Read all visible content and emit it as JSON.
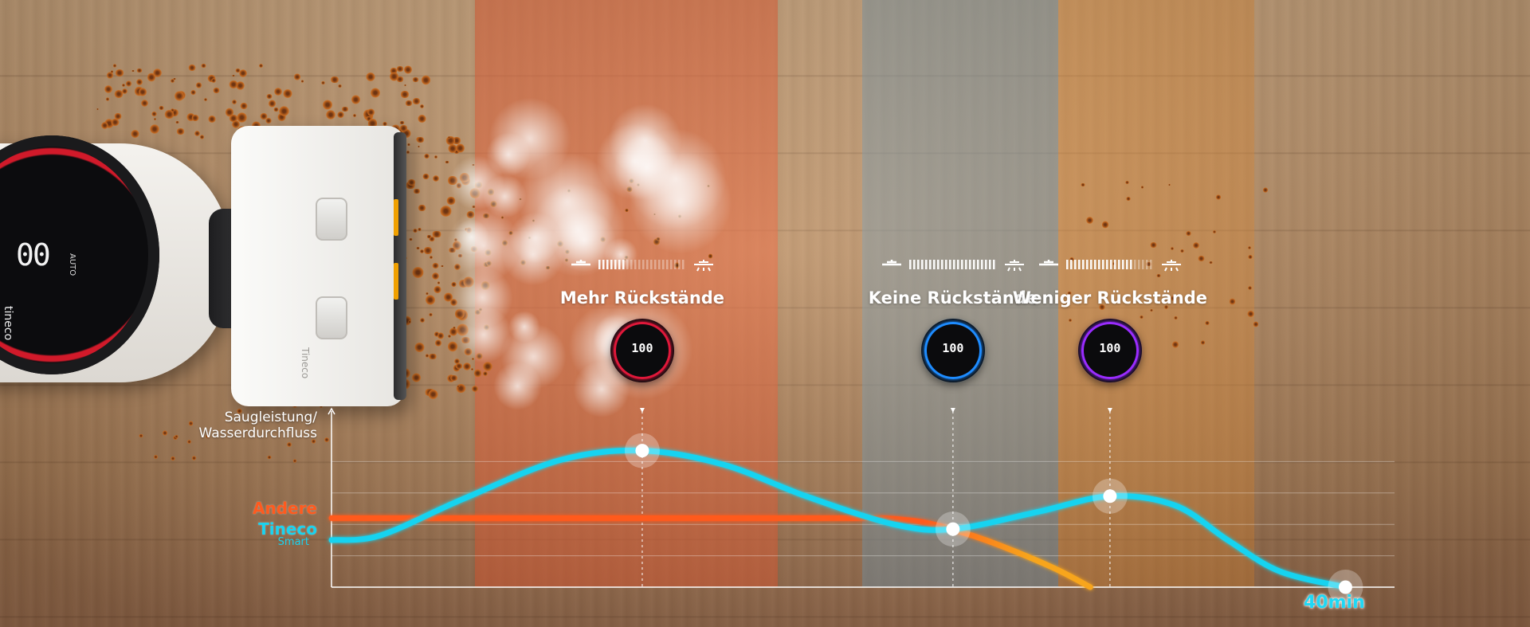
{
  "chart_data": {
    "type": "line",
    "ylabel_line1": "Saugleistung/",
    "ylabel_line2": "Wasserdurchfluss",
    "x_end_label": "40min",
    "grid": true,
    "series": [
      {
        "name": "Andere",
        "color": "#ff5a1e",
        "color_end": "#f7a51c",
        "x": [
          0,
          9.0,
          13.5,
          16.0,
          16.8,
          17.5,
          18.4,
          20.0,
          22.0,
          23.2
        ],
        "values": [
          0.44,
          0.44,
          0.44,
          0.44,
          0.44,
          0.43,
          0.4,
          0.3,
          0.13,
          0.0
        ]
      },
      {
        "name": "Tineco",
        "subname": "Smart",
        "color": "#19d3f0",
        "x": [
          0,
          1.5,
          4.0,
          7.0,
          9.5,
          12.0,
          14.5,
          17.2,
          19.0,
          21.6,
          23.8,
          25.8,
          27.4,
          29.0,
          31.0
        ],
        "values": [
          0.3,
          0.33,
          0.56,
          0.81,
          0.87,
          0.78,
          0.58,
          0.4,
          0.37,
          0.48,
          0.58,
          0.52,
          0.3,
          0.1,
          0.0
        ]
      }
    ],
    "markers": [
      {
        "x": 9.5,
        "y": 0.87,
        "zone_label": "Mehr Rückstände",
        "dial_value": "100",
        "ring_color": "#e0183a"
      },
      {
        "x": 19.0,
        "y": 0.37,
        "zone_label": "Keine Rückstände",
        "dial_value": "100",
        "ring_color": "#1e8cff"
      },
      {
        "x": 23.8,
        "y": 0.58,
        "zone_label": "Weniger Rückstände",
        "dial_value": "100",
        "ring_color": "#9a2cff"
      },
      {
        "x": 31.0,
        "y": 0.0
      }
    ],
    "x_range": [
      0,
      32.5
    ],
    "y_range": [
      0,
      1
    ],
    "zone_colors": [
      "#e25c32",
      "#7896a5",
      "#e88c32"
    ]
  },
  "device": {
    "brand": "tineco",
    "display": "00",
    "mode": "AUTO",
    "head_brand": "Tineco"
  }
}
